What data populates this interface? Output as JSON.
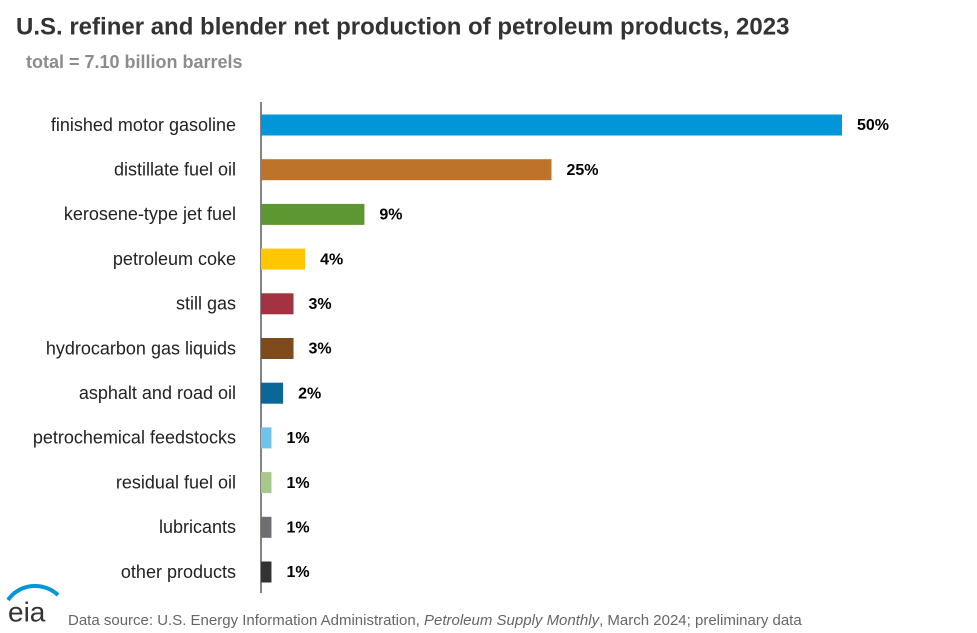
{
  "chart_data": {
    "type": "bar",
    "orientation": "horizontal",
    "title": "U.S. refiner and blender net production of petroleum products, 2023",
    "subtitle": "total = 7.10 billion barrels",
    "categories": [
      "finished motor gasoline",
      "distillate fuel oil",
      "kerosene-type jet fuel",
      "petroleum coke",
      "still gas",
      "hydrocarbon gas liquids",
      "asphalt and road oil",
      "petrochemical feedstocks",
      "residual fuel oil",
      "lubricants",
      "other products"
    ],
    "values": [
      50,
      25,
      8.9,
      3.8,
      2.8,
      2.8,
      1.9,
      0.9,
      0.9,
      0.9,
      0.9
    ],
    "value_labels": [
      "50%",
      "25%",
      "9%",
      "4%",
      "3%",
      "3%",
      "2%",
      "1%",
      "1%",
      "1%",
      "1%"
    ],
    "colors": [
      "#0096d7",
      "#bd732a",
      "#5d9732",
      "#ffc702",
      "#a33340",
      "#7f4a1c",
      "#0a6798",
      "#70c3ea",
      "#a6c98a",
      "#6d6e71",
      "#333333"
    ],
    "source": {
      "prefix": "Data source: U.S. Energy Information Administration, ",
      "publication": "Petroleum Supply Monthly",
      "suffix": ", March 2024; preliminary data"
    },
    "logo": "eia"
  }
}
